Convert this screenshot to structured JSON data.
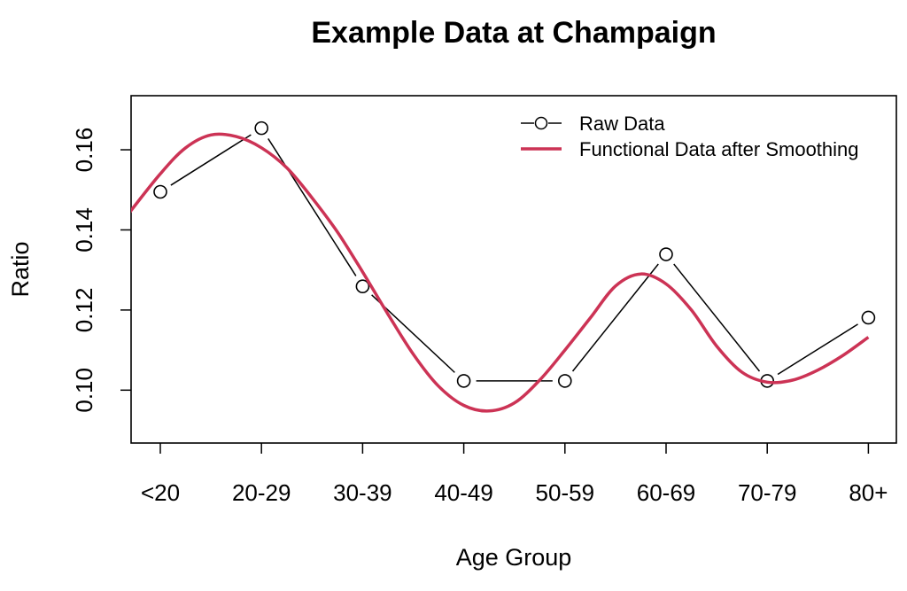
{
  "chart_data": {
    "type": "line",
    "title": "Example Data at Champaign",
    "xlabel": "Age Group",
    "ylabel": "Ratio",
    "categories": [
      "<20",
      "20-29",
      "30-39",
      "40-49",
      "50-59",
      "60-69",
      "70-79",
      "80+"
    ],
    "y_ticks": [
      "0.10",
      "0.12",
      "0.14",
      "0.16"
    ],
    "ylim": [
      0.0868,
      0.1735
    ],
    "grid": false,
    "legend_position": "top-right",
    "series": [
      {
        "name": "Raw Data",
        "style": "line-with-open-circles",
        "color": "#000000",
        "values": [
          0.1495,
          0.1654,
          0.1259,
          0.1023,
          0.1023,
          0.1339,
          0.1023,
          0.1181
        ]
      },
      {
        "name": "Functional Data after Smoothing",
        "style": "smooth-line",
        "color": "#CC3355",
        "x": [
          -0.3,
          0,
          0.25,
          0.5,
          0.75,
          1.0,
          1.25,
          1.5,
          1.75,
          2.0,
          2.25,
          2.5,
          2.75,
          3.0,
          3.25,
          3.5,
          3.75,
          4.0,
          4.25,
          4.5,
          4.75,
          5.0,
          5.25,
          5.5,
          5.75,
          6.0,
          6.25,
          6.5,
          6.75,
          7.0
        ],
        "values": [
          0.1445,
          0.154,
          0.1605,
          0.1637,
          0.1633,
          0.1605,
          0.1555,
          0.148,
          0.1395,
          0.1295,
          0.119,
          0.109,
          0.101,
          0.0962,
          0.0948,
          0.0968,
          0.1025,
          0.11,
          0.118,
          0.126,
          0.129,
          0.1265,
          0.12,
          0.111,
          0.1045,
          0.102,
          0.1025,
          0.105,
          0.1087,
          0.1132
        ]
      }
    ]
  }
}
